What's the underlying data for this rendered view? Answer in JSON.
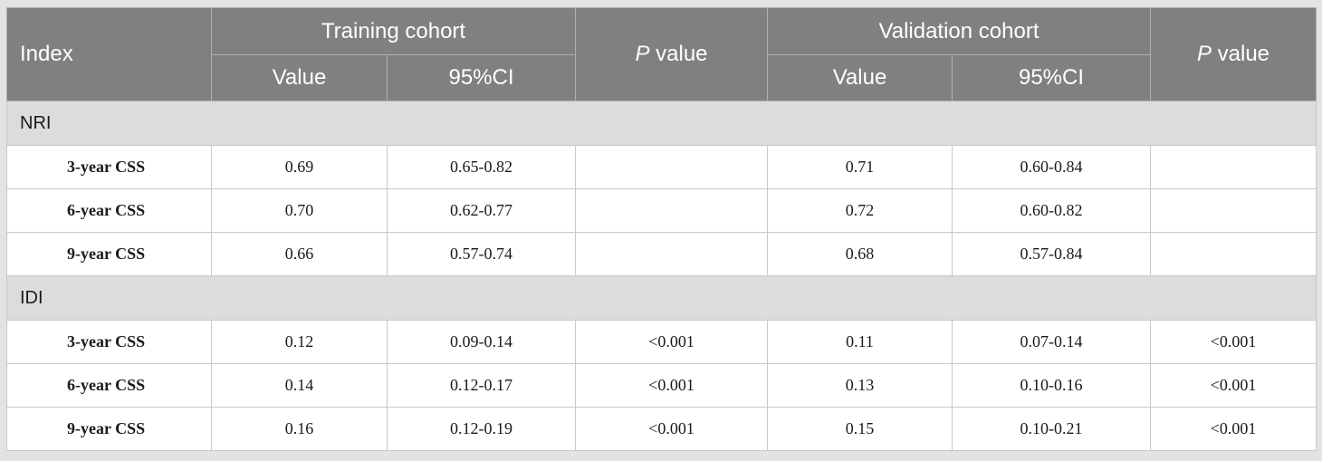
{
  "table": {
    "headers": {
      "index": "Index",
      "training_cohort": "Training cohort",
      "validation_cohort": "Validation cohort",
      "p_label_italic": "P",
      "p_label_rest": " value",
      "value": "Value",
      "ci": "95%CI"
    },
    "sections": [
      {
        "title": "NRI",
        "rows": [
          {
            "label": "3-year CSS",
            "train_value": "0.69",
            "train_ci": "0.65-0.82",
            "train_p": "",
            "val_value": "0.71",
            "val_ci": "0.60-0.84",
            "val_p": ""
          },
          {
            "label": "6-year CSS",
            "train_value": "0.70",
            "train_ci": "0.62-0.77",
            "train_p": "",
            "val_value": "0.72",
            "val_ci": "0.60-0.82",
            "val_p": ""
          },
          {
            "label": "9-year CSS",
            "train_value": "0.66",
            "train_ci": "0.57-0.74",
            "train_p": "",
            "val_value": "0.68",
            "val_ci": "0.57-0.84",
            "val_p": ""
          }
        ]
      },
      {
        "title": "IDI",
        "rows": [
          {
            "label": "3-year CSS",
            "train_value": "0.12",
            "train_ci": "0.09-0.14",
            "train_p": "<0.001",
            "val_value": "0.11",
            "val_ci": "0.07-0.14",
            "val_p": "<0.001"
          },
          {
            "label": "6-year CSS",
            "train_value": "0.14",
            "train_ci": "0.12-0.17",
            "train_p": "<0.001",
            "val_value": "0.13",
            "val_ci": "0.10-0.16",
            "val_p": "<0.001"
          },
          {
            "label": "9-year CSS",
            "train_value": "0.16",
            "train_ci": "0.12-0.19",
            "train_p": "<0.001",
            "val_value": "0.15",
            "val_ci": "0.10-0.21",
            "val_p": "<0.001"
          }
        ]
      }
    ]
  }
}
